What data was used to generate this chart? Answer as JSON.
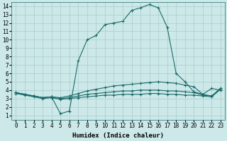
{
  "xlabel": "Humidex (Indice chaleur)",
  "bg_color": "#cce8e8",
  "grid_color": "#aacccc",
  "line_color": "#1a6b6b",
  "xlim": [
    -0.5,
    23.5
  ],
  "ylim": [
    0.5,
    14.5
  ],
  "xticks": [
    0,
    1,
    2,
    3,
    4,
    5,
    6,
    7,
    8,
    9,
    10,
    11,
    12,
    13,
    14,
    15,
    16,
    17,
    18,
    19,
    20,
    21,
    22,
    23
  ],
  "yticks": [
    1,
    2,
    3,
    4,
    5,
    6,
    7,
    8,
    9,
    10,
    11,
    12,
    13,
    14
  ],
  "curve_main_x": [
    0,
    1,
    2,
    3,
    4,
    5,
    6,
    7,
    8,
    9,
    10,
    11,
    12,
    13,
    14,
    15,
    16,
    17,
    18,
    19,
    20,
    21,
    22,
    23
  ],
  "curve_main_y": [
    3.7,
    3.5,
    3.3,
    3.1,
    3.2,
    1.2,
    1.5,
    7.5,
    10.0,
    10.5,
    11.8,
    12.0,
    12.2,
    13.5,
    13.8,
    14.2,
    13.8,
    11.5,
    6.0,
    5.0,
    3.8,
    3.5,
    4.2,
    4.0
  ],
  "curve_mid_x": [
    0,
    1,
    2,
    3,
    4,
    5,
    6,
    7,
    8,
    9,
    10,
    11,
    12,
    13,
    14,
    15,
    16,
    17,
    18,
    19,
    20,
    21,
    22,
    23
  ],
  "curve_mid_y": [
    3.7,
    3.5,
    3.3,
    3.1,
    3.2,
    3.1,
    3.3,
    3.6,
    3.9,
    4.1,
    4.3,
    4.5,
    4.6,
    4.7,
    4.8,
    4.9,
    5.0,
    4.9,
    4.8,
    4.6,
    4.4,
    3.5,
    3.3,
    4.2
  ],
  "curve_low_x": [
    0,
    1,
    2,
    3,
    4,
    5,
    6,
    7,
    8,
    9,
    10,
    11,
    12,
    13,
    14,
    15,
    16,
    17,
    18,
    19,
    20,
    21,
    22,
    23
  ],
  "curve_low_y": [
    3.7,
    3.5,
    3.3,
    3.1,
    3.2,
    3.0,
    3.1,
    3.3,
    3.5,
    3.6,
    3.7,
    3.8,
    3.9,
    3.9,
    4.0,
    4.0,
    4.0,
    3.9,
    3.9,
    3.8,
    3.7,
    3.4,
    3.3,
    4.2
  ],
  "curve_bot_x": [
    0,
    1,
    2,
    3,
    4,
    5,
    6,
    7,
    8,
    9,
    10,
    11,
    12,
    13,
    14,
    15,
    16,
    17,
    18,
    19,
    20,
    21,
    22,
    23
  ],
  "curve_bot_y": [
    3.6,
    3.4,
    3.2,
    3.0,
    3.1,
    2.9,
    3.0,
    3.1,
    3.2,
    3.3,
    3.4,
    3.4,
    3.5,
    3.5,
    3.5,
    3.6,
    3.6,
    3.5,
    3.5,
    3.4,
    3.4,
    3.3,
    3.2,
    4.1
  ],
  "xlabel_fontsize": 6.5,
  "tick_fontsize": 5.5
}
